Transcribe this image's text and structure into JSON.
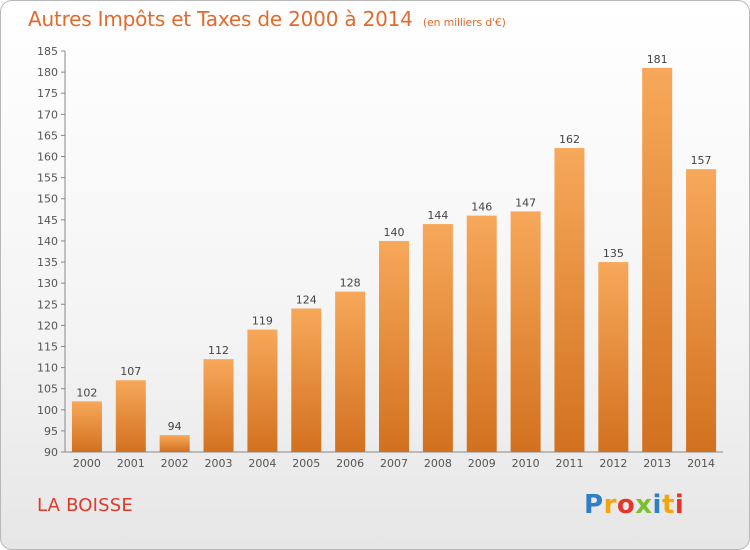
{
  "header": {
    "title": "Autres Impôts et Taxes de 2000 à 2014",
    "subtitle": "(en milliers d'€)"
  },
  "footer": {
    "commune": "LA BOISSE",
    "logo": {
      "letters": [
        "P",
        "r",
        "o",
        "x",
        "i",
        "t",
        "i"
      ],
      "colors": [
        "#2f7fc6",
        "#f2a60c",
        "#e5362b",
        "#7cbf2e",
        "#2f7fc6",
        "#f2a60c",
        "#e5362b"
      ]
    }
  },
  "colors": {
    "bar_top": "#f7a85a",
    "bar_bottom": "#d2711f",
    "title": "#e46a2c",
    "commune": "#dd3a2c"
  },
  "chart_data": {
    "type": "bar",
    "title": "Autres Impôts et Taxes de 2000 à 2014",
    "subtitle": "(en milliers d'€)",
    "categories": [
      "2000",
      "2001",
      "2002",
      "2003",
      "2004",
      "2005",
      "2006",
      "2007",
      "2008",
      "2009",
      "2010",
      "2011",
      "2012",
      "2013",
      "2014"
    ],
    "values": [
      102,
      107,
      94,
      112,
      119,
      124,
      128,
      140,
      144,
      146,
      147,
      162,
      135,
      181,
      157
    ],
    "ylim": [
      90,
      185
    ],
    "yticks": [
      90,
      95,
      100,
      105,
      110,
      115,
      120,
      125,
      130,
      135,
      140,
      145,
      150,
      155,
      160,
      165,
      170,
      175,
      180,
      185
    ],
    "grid": false,
    "xlabel": "",
    "ylabel": ""
  }
}
